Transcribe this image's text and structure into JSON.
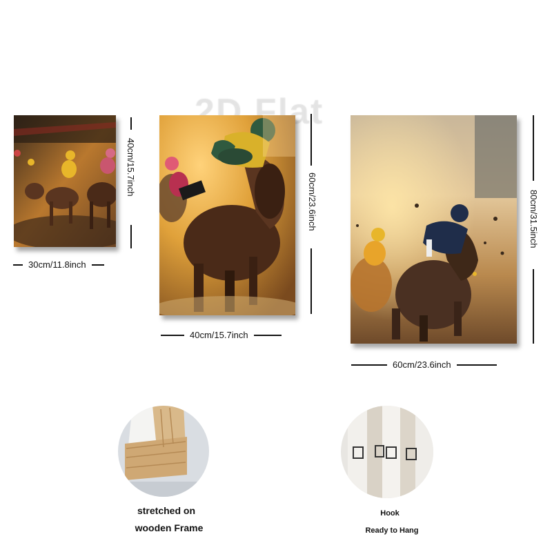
{
  "watermark": "2D Flat",
  "panels": [
    {
      "id": "small",
      "width_label": "30cm/11.8inch",
      "height_label": "40cm/15.7inch"
    },
    {
      "id": "medium",
      "width_label": "40cm/15.7inch",
      "height_label": "60cm/23.6inch"
    },
    {
      "id": "large",
      "width_label": "60cm/23.6inch",
      "height_label": "80cm/31.5inch"
    }
  ],
  "features": {
    "frame": {
      "line1": "stretched on",
      "line2": "wooden Frame"
    },
    "hook": {
      "line1": "Hook",
      "line2": "Ready to Hang"
    }
  },
  "colors": {
    "race_gold": "#e0a13a",
    "horse_brown": "#4a2a18",
    "jockey_green": "#2f5a3f",
    "jockey_yellow": "#e8b62a",
    "jockey_navy": "#1f2d4a",
    "wood": "#d9b98a"
  }
}
